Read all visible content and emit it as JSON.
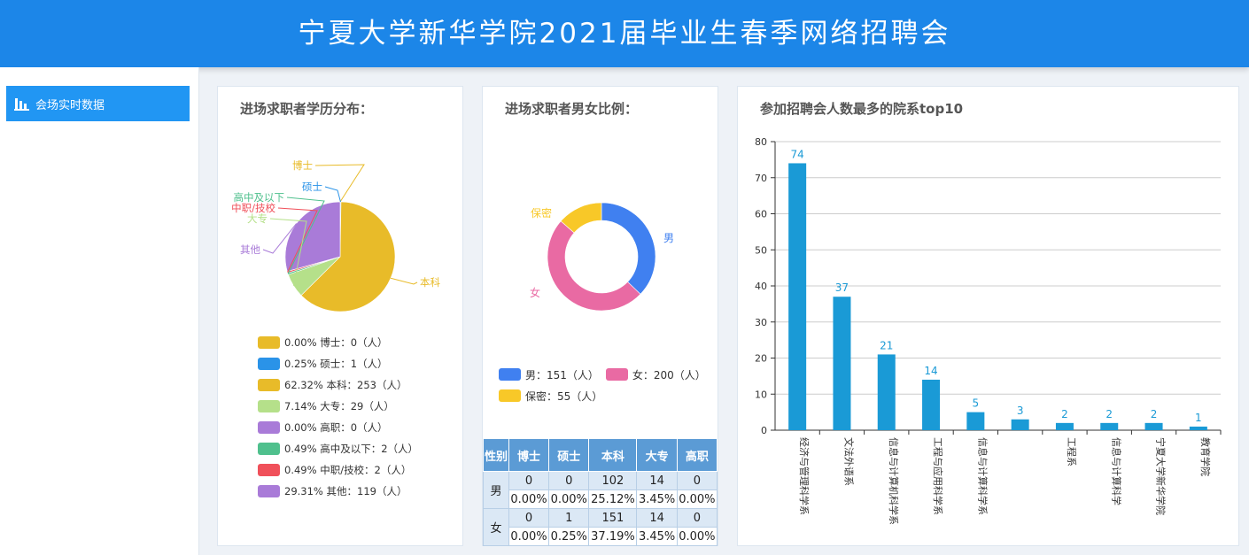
{
  "header": {
    "title": "宁夏大学新华学院2021届毕业生春季网络招聘会"
  },
  "sidebar": {
    "items": [
      {
        "label": "会场实时数据",
        "icon": "bar-chart-icon"
      }
    ]
  },
  "colors": {
    "header": "#1c86e8",
    "accent": "#2196f3",
    "bar": "#1a9ad6"
  },
  "edu_panel": {
    "title": "进场求职者学历分布：",
    "legend": [
      "0.00%  博士：0（人）",
      "0.25%  硕士：1（人）",
      "62.32%  本科：253（人）",
      "7.14%  大专：29（人）",
      "0.00%  高职：0（人）",
      "0.49%  高中及以下：2（人）",
      "0.49%  中职/技校：2（人）",
      "29.31%  其他：119（人）"
    ]
  },
  "gender_panel": {
    "title": "进场求职者男女比例：",
    "legend": [
      "男：151（人）",
      "女：200（人）",
      "保密：55（人）"
    ],
    "table": {
      "headers": [
        "性别",
        "博士",
        "硕士",
        "本科",
        "大专",
        "高职"
      ],
      "rows": [
        {
          "label": "男",
          "counts": [
            "0",
            "0",
            "102",
            "14",
            "0"
          ],
          "pcts": [
            "0.00%",
            "0.00%",
            "25.12%",
            "3.45%",
            "0.00%"
          ]
        },
        {
          "label": "女",
          "counts": [
            "0",
            "1",
            "151",
            "14",
            "0"
          ],
          "pcts": [
            "0.00%",
            "0.25%",
            "37.19%",
            "3.45%",
            "0.00%"
          ]
        }
      ]
    }
  },
  "dept_panel": {
    "title": "参加招聘会人数最多的院系top10"
  },
  "chart_data": [
    {
      "type": "pie",
      "categories": [
        "博士",
        "硕士",
        "本科",
        "大专",
        "高职",
        "高中及以下",
        "中职/技校",
        "其他"
      ],
      "values": [
        0,
        1,
        253,
        29,
        0,
        2,
        2,
        119
      ],
      "colors": [
        "#e8bb29",
        "#2a93e8",
        "#e8bb29",
        "#b5e08a",
        "#a97bd8",
        "#4fc08d",
        "#f0505a",
        "#a97bd8"
      ]
    },
    {
      "type": "pie",
      "categories": [
        "男",
        "女",
        "保密"
      ],
      "values": [
        151,
        200,
        55
      ],
      "colors": [
        "#4080f0",
        "#e96aa3",
        "#f8c828"
      ]
    },
    {
      "type": "bar",
      "categories": [
        "经济与管理科学系",
        "文法外语系",
        "信息与计算机科学系",
        "工程与应用科学系",
        "信息与计算科学系",
        "",
        "工程系",
        "信息与计算科学",
        "宁夏大学新华学院",
        "教育学院"
      ],
      "values": [
        74,
        37,
        21,
        14,
        5,
        3,
        2,
        2,
        2,
        1
      ],
      "ylim": [
        0,
        80
      ],
      "yticks": [
        0,
        10,
        20,
        30,
        40,
        50,
        60,
        70,
        80
      ]
    }
  ]
}
